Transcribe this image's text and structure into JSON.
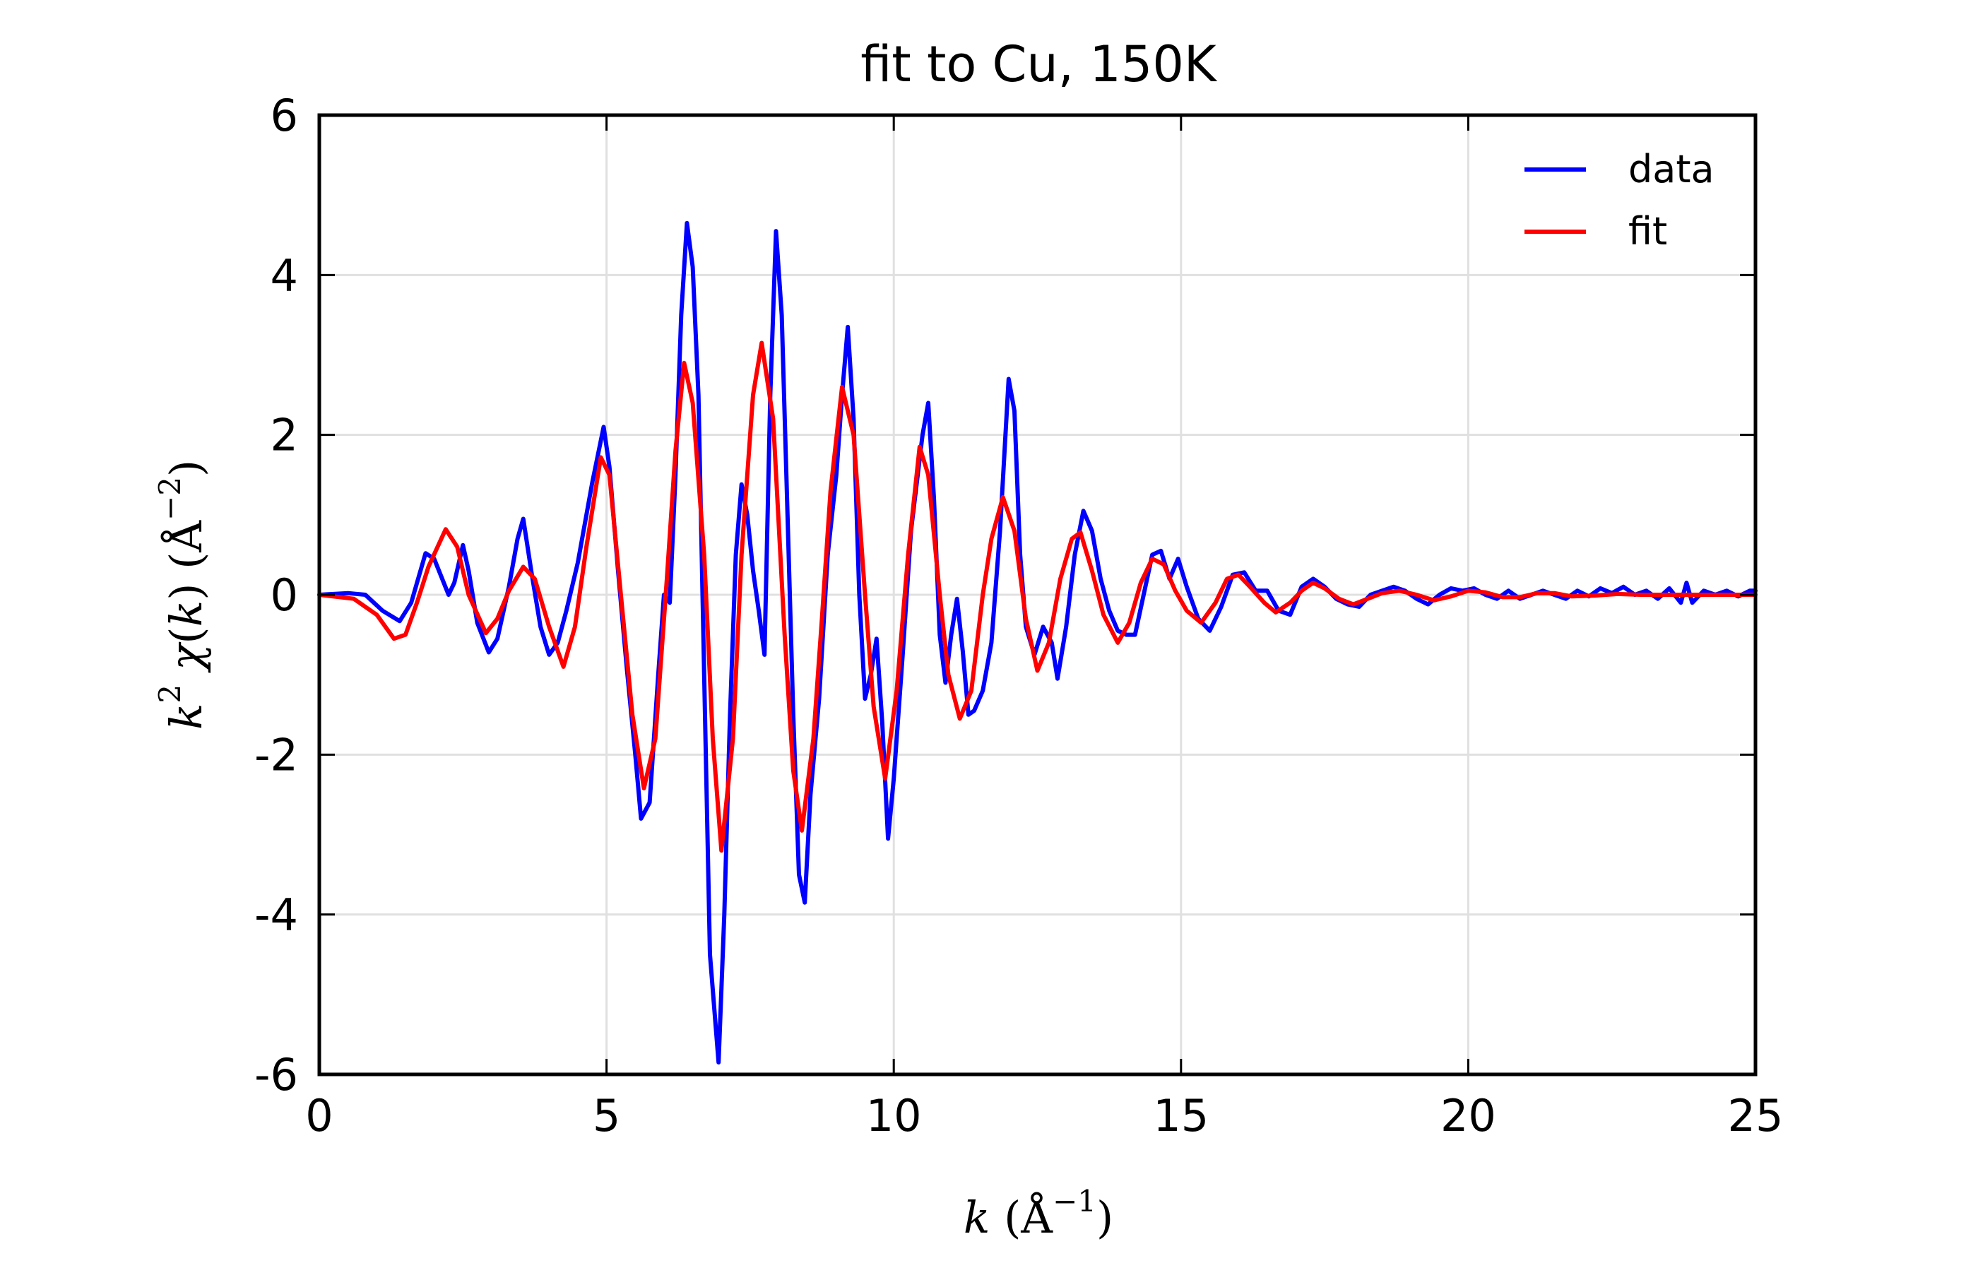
{
  "chart_data": {
    "type": "line",
    "title": "fit to Cu, 150K",
    "xlabel": {
      "var": "k",
      "unit": "Å",
      "exp": "−1"
    },
    "ylabel": {
      "pre": "k",
      "pre_exp": "2",
      "func": "χ",
      "arg": "k",
      "unit": "Å",
      "exp": "−2"
    },
    "xlim": [
      0,
      25
    ],
    "ylim": [
      -6,
      6
    ],
    "xticks": [
      0,
      5,
      10,
      15,
      20,
      25
    ],
    "xtick_labels": [
      "0",
      "5",
      "10",
      "15",
      "20",
      "25"
    ],
    "yticks": [
      -6,
      -4,
      -2,
      0,
      2,
      4,
      6
    ],
    "ytick_labels": [
      "-6",
      "-4",
      "-2",
      "0",
      "2",
      "4",
      "6"
    ],
    "grid": true,
    "legend_position": "top-right",
    "series": [
      {
        "name": "data",
        "color": "#0000ff",
        "points": [
          [
            0,
            0
          ],
          [
            0.5,
            0.02
          ],
          [
            0.8,
            0
          ],
          [
            1.1,
            -0.2
          ],
          [
            1.4,
            -0.33
          ],
          [
            1.6,
            -0.1
          ],
          [
            1.85,
            0.52
          ],
          [
            2.0,
            0.45
          ],
          [
            2.25,
            0.0
          ],
          [
            2.35,
            0.15
          ],
          [
            2.5,
            0.62
          ],
          [
            2.6,
            0.3
          ],
          [
            2.75,
            -0.35
          ],
          [
            2.95,
            -0.72
          ],
          [
            3.1,
            -0.55
          ],
          [
            3.3,
            0.1
          ],
          [
            3.45,
            0.7
          ],
          [
            3.55,
            0.95
          ],
          [
            3.7,
            0.25
          ],
          [
            3.85,
            -0.4
          ],
          [
            4.0,
            -0.75
          ],
          [
            4.15,
            -0.6
          ],
          [
            4.3,
            -0.2
          ],
          [
            4.5,
            0.4
          ],
          [
            4.75,
            1.4
          ],
          [
            4.95,
            2.1
          ],
          [
            5.05,
            1.6
          ],
          [
            5.2,
            0.3
          ],
          [
            5.35,
            -0.9
          ],
          [
            5.5,
            -2.0
          ],
          [
            5.6,
            -2.8
          ],
          [
            5.75,
            -2.6
          ],
          [
            5.9,
            -1.0
          ],
          [
            6.0,
            0.0
          ],
          [
            6.1,
            -0.1
          ],
          [
            6.2,
            1.5
          ],
          [
            6.3,
            3.5
          ],
          [
            6.4,
            4.65
          ],
          [
            6.5,
            4.1
          ],
          [
            6.6,
            2.5
          ],
          [
            6.7,
            -1.0
          ],
          [
            6.8,
            -4.5
          ],
          [
            6.95,
            -5.85
          ],
          [
            7.05,
            -4.0
          ],
          [
            7.15,
            -1.5
          ],
          [
            7.25,
            0.5
          ],
          [
            7.35,
            1.38
          ],
          [
            7.45,
            1.0
          ],
          [
            7.55,
            0.3
          ],
          [
            7.65,
            -0.2
          ],
          [
            7.75,
            -0.75
          ],
          [
            7.85,
            2.5
          ],
          [
            7.95,
            4.55
          ],
          [
            8.05,
            3.5
          ],
          [
            8.15,
            1.0
          ],
          [
            8.25,
            -1.5
          ],
          [
            8.35,
            -3.5
          ],
          [
            8.45,
            -3.85
          ],
          [
            8.55,
            -2.5
          ],
          [
            8.7,
            -1.3
          ],
          [
            8.85,
            0.5
          ],
          [
            9.0,
            1.5
          ],
          [
            9.1,
            2.5
          ],
          [
            9.2,
            3.35
          ],
          [
            9.3,
            2.2
          ],
          [
            9.4,
            0.0
          ],
          [
            9.5,
            -1.3
          ],
          [
            9.6,
            -1.0
          ],
          [
            9.7,
            -0.55
          ],
          [
            9.8,
            -1.6
          ],
          [
            9.9,
            -3.05
          ],
          [
            10.0,
            -2.3
          ],
          [
            10.15,
            -0.8
          ],
          [
            10.3,
            0.8
          ],
          [
            10.5,
            2.0
          ],
          [
            10.6,
            2.4
          ],
          [
            10.7,
            1.2
          ],
          [
            10.8,
            -0.5
          ],
          [
            10.9,
            -1.1
          ],
          [
            11.0,
            -0.5
          ],
          [
            11.1,
            -0.05
          ],
          [
            11.2,
            -0.7
          ],
          [
            11.3,
            -1.5
          ],
          [
            11.4,
            -1.45
          ],
          [
            11.55,
            -1.2
          ],
          [
            11.7,
            -0.6
          ],
          [
            11.85,
            0.8
          ],
          [
            12.0,
            2.7
          ],
          [
            12.1,
            2.3
          ],
          [
            12.2,
            0.5
          ],
          [
            12.3,
            -0.4
          ],
          [
            12.45,
            -0.75
          ],
          [
            12.6,
            -0.4
          ],
          [
            12.75,
            -0.6
          ],
          [
            12.85,
            -1.05
          ],
          [
            13.0,
            -0.4
          ],
          [
            13.15,
            0.5
          ],
          [
            13.3,
            1.05
          ],
          [
            13.45,
            0.8
          ],
          [
            13.6,
            0.2
          ],
          [
            13.75,
            -0.2
          ],
          [
            13.9,
            -0.45
          ],
          [
            14.05,
            -0.5
          ],
          [
            14.2,
            -0.5
          ],
          [
            14.35,
            0.0
          ],
          [
            14.5,
            0.5
          ],
          [
            14.65,
            0.55
          ],
          [
            14.8,
            0.2
          ],
          [
            14.95,
            0.45
          ],
          [
            15.1,
            0.1
          ],
          [
            15.3,
            -0.3
          ],
          [
            15.5,
            -0.45
          ],
          [
            15.7,
            -0.15
          ],
          [
            15.9,
            0.25
          ],
          [
            16.1,
            0.28
          ],
          [
            16.3,
            0.05
          ],
          [
            16.5,
            0.05
          ],
          [
            16.7,
            -0.2
          ],
          [
            16.9,
            -0.25
          ],
          [
            17.1,
            0.1
          ],
          [
            17.3,
            0.2
          ],
          [
            17.5,
            0.1
          ],
          [
            17.7,
            -0.05
          ],
          [
            17.9,
            -0.12
          ],
          [
            18.1,
            -0.15
          ],
          [
            18.3,
            0.0
          ],
          [
            18.5,
            0.05
          ],
          [
            18.7,
            0.1
          ],
          [
            18.9,
            0.05
          ],
          [
            19.1,
            -0.05
          ],
          [
            19.3,
            -0.12
          ],
          [
            19.5,
            0.0
          ],
          [
            19.7,
            0.08
          ],
          [
            19.9,
            0.05
          ],
          [
            20.1,
            0.08
          ],
          [
            20.3,
            0.0
          ],
          [
            20.5,
            -0.05
          ],
          [
            20.7,
            0.05
          ],
          [
            20.9,
            -0.05
          ],
          [
            21.1,
            0.0
          ],
          [
            21.3,
            0.05
          ],
          [
            21.5,
            0.0
          ],
          [
            21.7,
            -0.05
          ],
          [
            21.9,
            0.05
          ],
          [
            22.1,
            -0.02
          ],
          [
            22.3,
            0.08
          ],
          [
            22.5,
            0.02
          ],
          [
            22.7,
            0.1
          ],
          [
            22.9,
            0.0
          ],
          [
            23.1,
            0.05
          ],
          [
            23.3,
            -0.05
          ],
          [
            23.5,
            0.08
          ],
          [
            23.7,
            -0.1
          ],
          [
            23.8,
            0.15
          ],
          [
            23.9,
            -0.1
          ],
          [
            24.1,
            0.05
          ],
          [
            24.3,
            0.0
          ],
          [
            24.5,
            0.05
          ],
          [
            24.7,
            -0.02
          ],
          [
            24.9,
            0.05
          ],
          [
            25,
            0.05
          ]
        ]
      },
      {
        "name": "fit",
        "color": "#ff0000",
        "points": [
          [
            0,
            0
          ],
          [
            0.6,
            -0.05
          ],
          [
            1.0,
            -0.25
          ],
          [
            1.3,
            -0.55
          ],
          [
            1.5,
            -0.5
          ],
          [
            1.7,
            -0.1
          ],
          [
            1.9,
            0.35
          ],
          [
            2.2,
            0.82
          ],
          [
            2.4,
            0.6
          ],
          [
            2.6,
            0.0
          ],
          [
            2.9,
            -0.48
          ],
          [
            3.1,
            -0.3
          ],
          [
            3.3,
            0.05
          ],
          [
            3.55,
            0.35
          ],
          [
            3.75,
            0.2
          ],
          [
            4.0,
            -0.4
          ],
          [
            4.25,
            -0.9
          ],
          [
            4.45,
            -0.4
          ],
          [
            4.65,
            0.6
          ],
          [
            4.9,
            1.72
          ],
          [
            5.05,
            1.5
          ],
          [
            5.25,
            0.0
          ],
          [
            5.45,
            -1.5
          ],
          [
            5.65,
            -2.42
          ],
          [
            5.85,
            -1.8
          ],
          [
            6.05,
            0.2
          ],
          [
            6.2,
            1.8
          ],
          [
            6.35,
            2.9
          ],
          [
            6.5,
            2.4
          ],
          [
            6.7,
            0.5
          ],
          [
            6.85,
            -1.8
          ],
          [
            7.0,
            -3.2
          ],
          [
            7.2,
            -1.8
          ],
          [
            7.35,
            0.5
          ],
          [
            7.55,
            2.5
          ],
          [
            7.7,
            3.15
          ],
          [
            7.9,
            2.2
          ],
          [
            8.1,
            -0.5
          ],
          [
            8.25,
            -2.2
          ],
          [
            8.4,
            -2.95
          ],
          [
            8.6,
            -1.8
          ],
          [
            8.75,
            -0.3
          ],
          [
            8.9,
            1.3
          ],
          [
            9.1,
            2.6
          ],
          [
            9.3,
            2.0
          ],
          [
            9.5,
            0.0
          ],
          [
            9.65,
            -1.4
          ],
          [
            9.85,
            -2.3
          ],
          [
            10.05,
            -1.2
          ],
          [
            10.25,
            0.5
          ],
          [
            10.45,
            1.85
          ],
          [
            10.6,
            1.5
          ],
          [
            10.8,
            0.0
          ],
          [
            10.95,
            -1.0
          ],
          [
            11.15,
            -1.55
          ],
          [
            11.35,
            -1.2
          ],
          [
            11.55,
            0.0
          ],
          [
            11.7,
            0.7
          ],
          [
            11.9,
            1.22
          ],
          [
            12.1,
            0.8
          ],
          [
            12.3,
            -0.3
          ],
          [
            12.5,
            -0.95
          ],
          [
            12.7,
            -0.6
          ],
          [
            12.9,
            0.2
          ],
          [
            13.1,
            0.7
          ],
          [
            13.25,
            0.78
          ],
          [
            13.45,
            0.3
          ],
          [
            13.65,
            -0.25
          ],
          [
            13.9,
            -0.6
          ],
          [
            14.1,
            -0.35
          ],
          [
            14.3,
            0.15
          ],
          [
            14.5,
            0.45
          ],
          [
            14.7,
            0.38
          ],
          [
            14.9,
            0.05
          ],
          [
            15.1,
            -0.2
          ],
          [
            15.35,
            -0.35
          ],
          [
            15.6,
            -0.1
          ],
          [
            15.8,
            0.2
          ],
          [
            16.0,
            0.25
          ],
          [
            16.2,
            0.1
          ],
          [
            16.45,
            -0.1
          ],
          [
            16.65,
            -0.22
          ],
          [
            16.9,
            -0.1
          ],
          [
            17.1,
            0.05
          ],
          [
            17.3,
            0.15
          ],
          [
            17.5,
            0.08
          ],
          [
            17.75,
            -0.05
          ],
          [
            18.0,
            -0.12
          ],
          [
            18.25,
            -0.05
          ],
          [
            18.5,
            0.02
          ],
          [
            18.8,
            0.05
          ],
          [
            19.1,
            0.0
          ],
          [
            19.4,
            -0.07
          ],
          [
            19.7,
            -0.02
          ],
          [
            20.0,
            0.05
          ],
          [
            20.3,
            0.03
          ],
          [
            20.6,
            -0.03
          ],
          [
            20.9,
            -0.03
          ],
          [
            21.2,
            0.02
          ],
          [
            21.5,
            0.02
          ],
          [
            21.8,
            -0.02
          ],
          [
            22.2,
            -0.01
          ],
          [
            22.6,
            0.01
          ],
          [
            23.0,
            0.0
          ],
          [
            23.5,
            0.0
          ],
          [
            24.0,
            0.0
          ],
          [
            24.5,
            0.0
          ],
          [
            25,
            0.0
          ]
        ]
      }
    ]
  }
}
